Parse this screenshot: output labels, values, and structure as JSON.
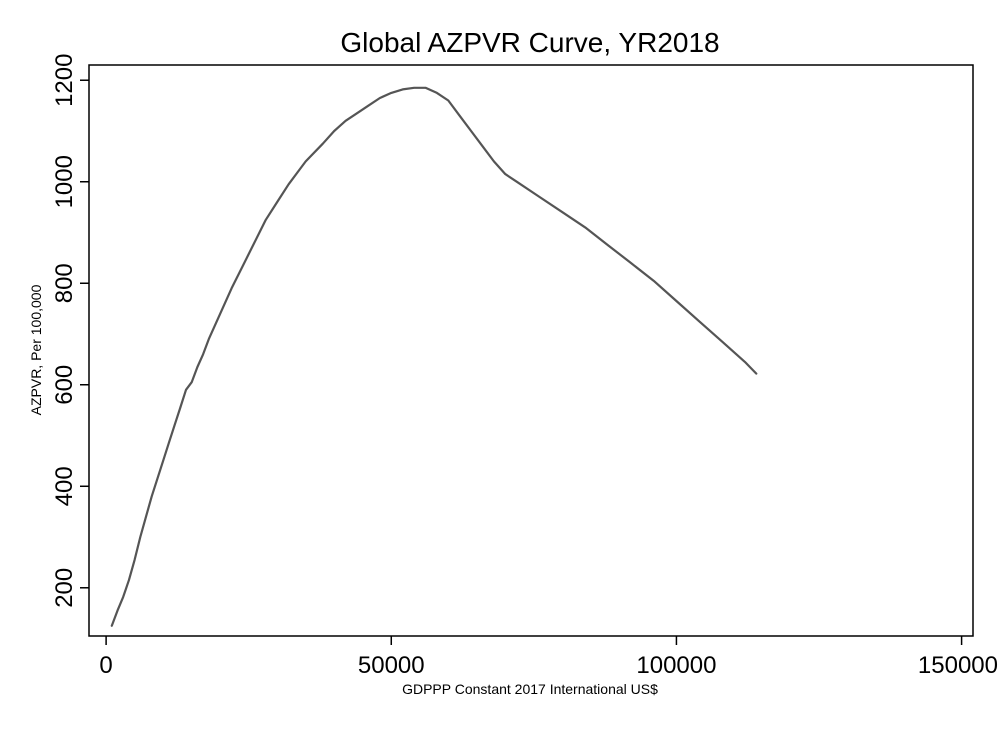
{
  "chart_data": {
    "type": "line",
    "title": "Global AZPVR Curve, YR2018",
    "xlabel": "GDPPP Constant 2017 International US$",
    "ylabel": "AZPVR, Per 100,000",
    "xlim": [
      -3000,
      152000
    ],
    "ylim": [
      105,
      1230
    ],
    "x_ticks": [
      0,
      50000,
      100000,
      150000
    ],
    "x_tick_labels": [
      "0",
      "50000",
      "100000",
      "150000"
    ],
    "y_ticks": [
      200,
      400,
      600,
      800,
      1000,
      1200
    ],
    "y_tick_labels": [
      "200",
      "400",
      "600",
      "800",
      "1000",
      "1200"
    ],
    "grid": false,
    "legend": "none",
    "colors": {
      "line": "#555555",
      "frame": "#000000"
    },
    "series": [
      {
        "x": [
          1000,
          2000,
          3000,
          4000,
          5000,
          6000,
          7000,
          8000,
          9000,
          10000,
          11000,
          12000,
          13000,
          14000,
          15000,
          16000,
          17000,
          18000,
          20000,
          22000,
          24000,
          26000,
          28000,
          30000,
          32000,
          34000,
          35000,
          38000,
          40000,
          42000,
          44000,
          46000,
          48000,
          50000,
          52000,
          54000,
          56000,
          58000,
          60000,
          62000,
          64000,
          66000,
          68000,
          70000,
          72000,
          76000,
          80000,
          84000,
          88000,
          92000,
          96000,
          100000,
          104000,
          108000,
          112000,
          114000
        ],
        "y": [
          125,
          155,
          182,
          215,
          255,
          300,
          340,
          380,
          415,
          450,
          485,
          520,
          555,
          590,
          605,
          635,
          660,
          690,
          740,
          790,
          835,
          880,
          925,
          960,
          995,
          1025,
          1040,
          1075,
          1100,
          1120,
          1135,
          1150,
          1165,
          1175,
          1182,
          1185,
          1185,
          1175,
          1160,
          1130,
          1100,
          1070,
          1040,
          1015,
          1000,
          970,
          940,
          910,
          875,
          840,
          805,
          765,
          725,
          685,
          645,
          622
        ]
      }
    ]
  }
}
